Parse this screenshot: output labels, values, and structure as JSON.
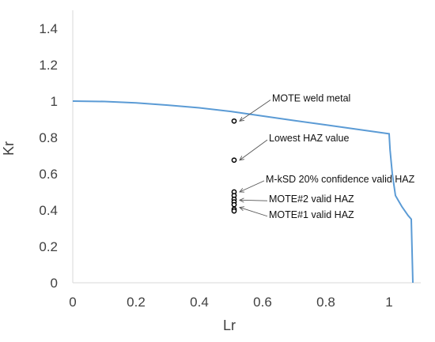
{
  "chart_data": {
    "type": "scatter",
    "title": "",
    "xlabel": "Lr",
    "ylabel": "Kr",
    "xlim": [
      0,
      1.1
    ],
    "ylim": [
      0,
      1.5
    ],
    "x_ticks": [
      0,
      0.2,
      0.4,
      0.6,
      0.8,
      1
    ],
    "x_tick_labels": [
      "0",
      "0.2",
      "0.4",
      "0.6",
      "0.8",
      "1"
    ],
    "y_ticks": [
      0,
      0.2,
      0.4,
      0.6,
      0.8,
      1,
      1.2,
      1.4
    ],
    "y_tick_labels": [
      "0",
      "0.2",
      "0.4",
      "0.6",
      "0.8",
      "1",
      "1.2",
      "1.4"
    ],
    "grid": false,
    "colors": {
      "curve": "#5b9bd5",
      "points": "#000000",
      "axis": "#d9d9d9",
      "text": "#404040"
    },
    "series": [
      {
        "type": "line",
        "x": [
          0,
          0.1,
          0.2,
          0.3,
          0.4,
          0.5,
          0.6,
          0.7,
          0.8,
          0.9,
          1.0,
          1.003,
          1.01,
          1.02,
          1.04,
          1.06,
          1.07,
          1.075
        ],
        "y": [
          1.0,
          0.998,
          0.99,
          0.978,
          0.963,
          0.943,
          0.918,
          0.893,
          0.869,
          0.845,
          0.82,
          0.73,
          0.6,
          0.48,
          0.42,
          0.37,
          0.35,
          0.0
        ]
      },
      {
        "type": "scatter",
        "x": [
          0.51,
          0.51,
          0.51,
          0.51,
          0.51,
          0.51,
          0.51,
          0.51,
          0.51
        ],
        "y": [
          0.89,
          0.675,
          0.5,
          0.48,
          0.46,
          0.445,
          0.43,
          0.405,
          0.395
        ]
      }
    ],
    "annotations": [
      {
        "text": "MOTE weld metal",
        "point": [
          0.51,
          0.89
        ],
        "label_at": [
          0.63,
          1.015
        ]
      },
      {
        "text": "Lowest HAZ value",
        "point": [
          0.51,
          0.675
        ],
        "label_at": [
          0.62,
          0.795
        ]
      },
      {
        "text": "M-kSD 20% confidence valid HAZ",
        "point": [
          0.51,
          0.5
        ],
        "label_at": [
          0.61,
          0.57
        ]
      },
      {
        "text": "MOTE#2 valid HAZ",
        "point": [
          0.51,
          0.455
        ],
        "label_at": [
          0.62,
          0.46
        ]
      },
      {
        "text": "MOTE#1 valid HAZ",
        "point": [
          0.51,
          0.415
        ],
        "label_at": [
          0.62,
          0.375
        ]
      }
    ]
  }
}
